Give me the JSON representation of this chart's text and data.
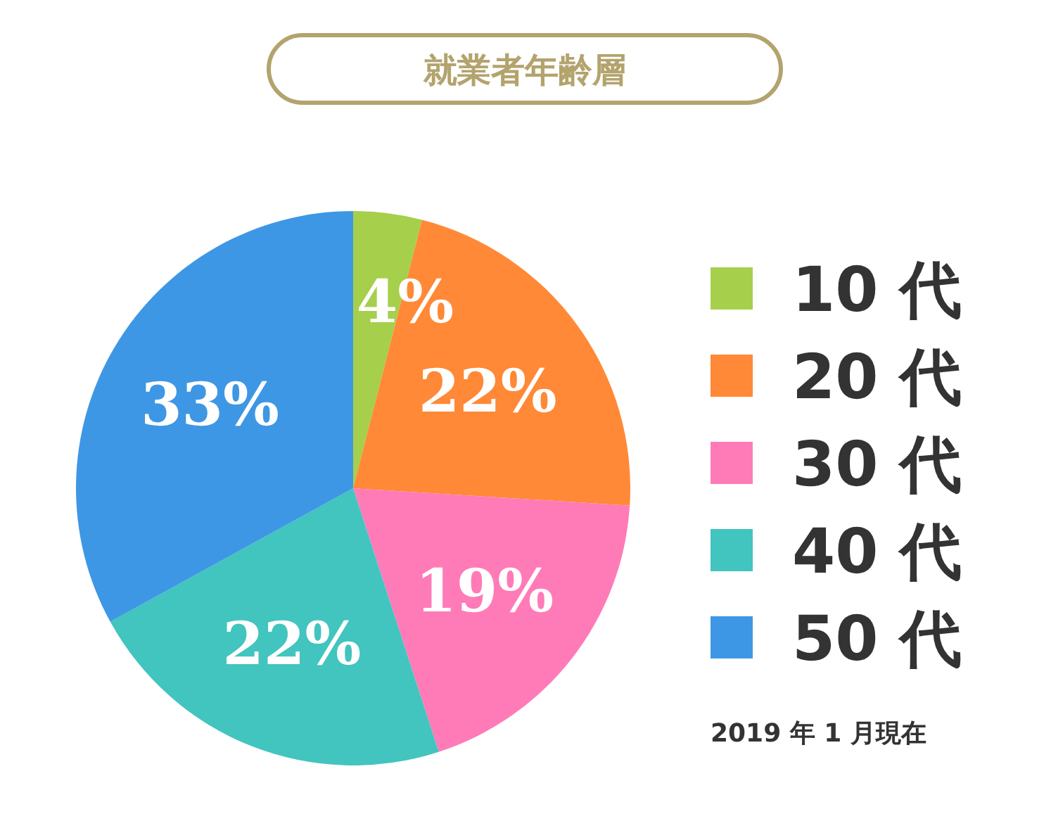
{
  "chart_data": {
    "type": "pie",
    "title": "就業者年齢層",
    "categories": [
      "10 代",
      "20 代",
      "30 代",
      "40 代",
      "50 代"
    ],
    "values": [
      4,
      22,
      19,
      22,
      33
    ],
    "colors": [
      "#a6cf4c",
      "#ff8936",
      "#ff7bb8",
      "#42c4bf",
      "#3e97e4"
    ],
    "value_labels": [
      "4%",
      "22%",
      "19%",
      "22%",
      "33%"
    ],
    "legend": "right",
    "annotations": [
      "2019 年 1 月現在"
    ]
  }
}
